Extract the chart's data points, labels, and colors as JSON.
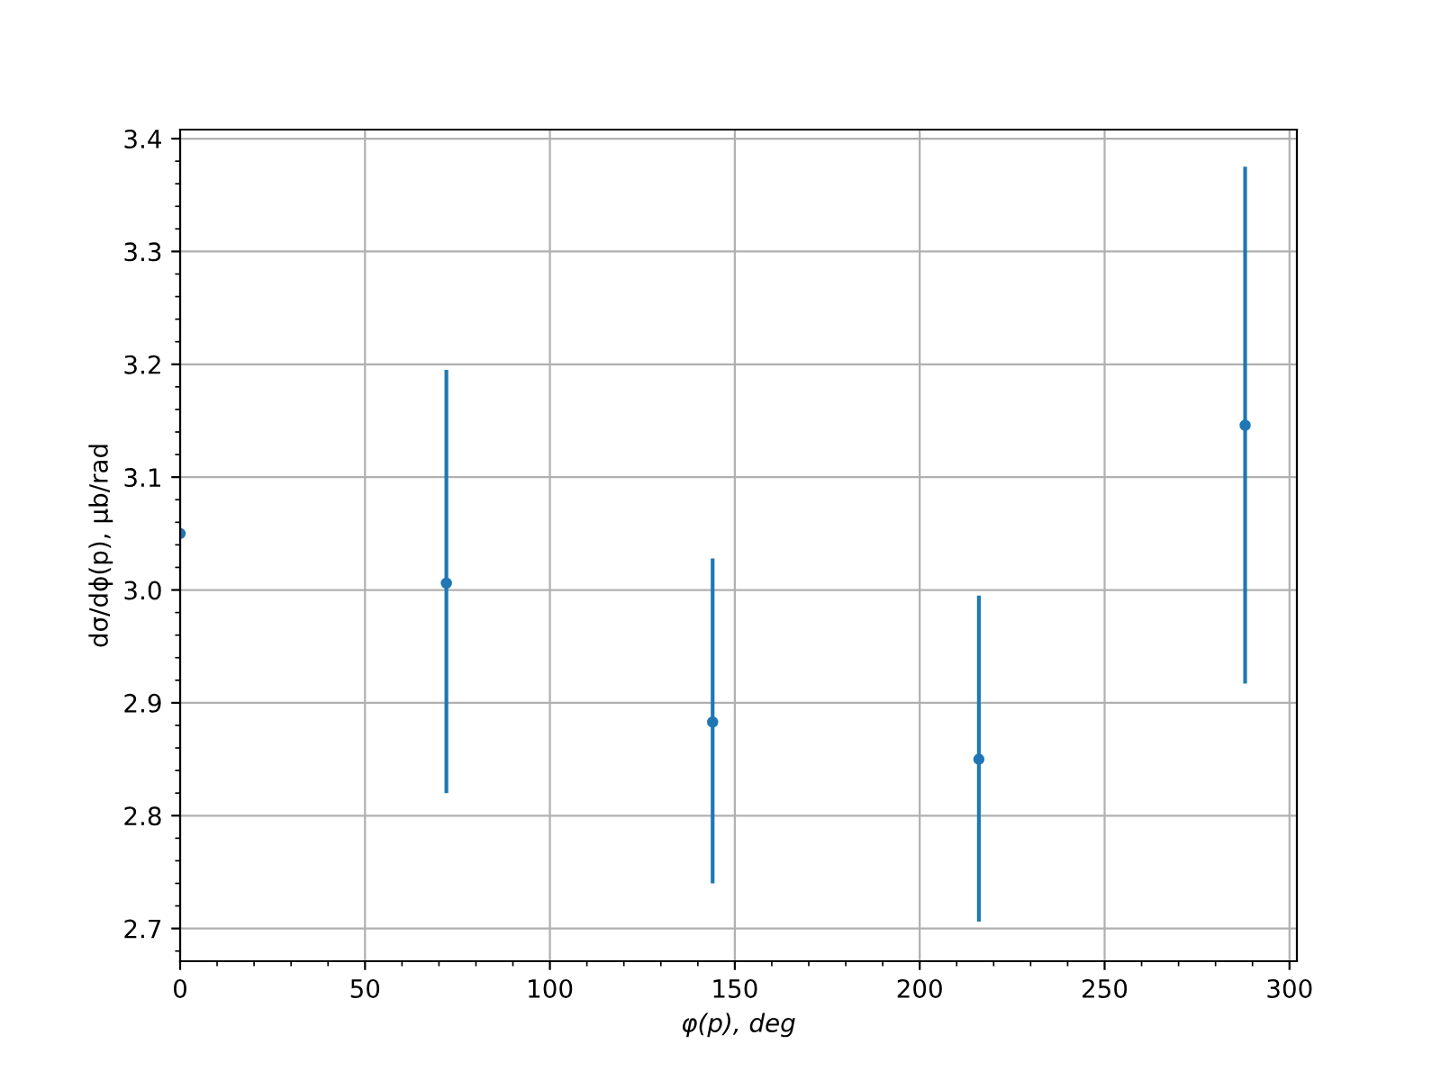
{
  "chart_data": {
    "type": "scatter",
    "xlabel": "φ(p), deg",
    "ylabel": "dσ/dϕ(p), μb/rad",
    "x": [
      0,
      72,
      144,
      216,
      288
    ],
    "series": [
      {
        "color": "#1f77b4",
        "values": [
          3.05,
          3.006,
          2.883,
          2.85,
          3.146
        ],
        "errors": [
          null,
          [
            2.82,
            3.195
          ],
          [
            2.74,
            3.028
          ],
          [
            2.706,
            2.995
          ],
          [
            2.917,
            3.375
          ]
        ]
      }
    ],
    "xlim": [
      0,
      302
    ],
    "xticks": [
      0,
      50,
      100,
      150,
      200,
      250,
      300
    ],
    "ylim": [
      2.671,
      3.408
    ],
    "yticks": [
      2.7,
      2.8,
      2.9,
      {
        "value": 3,
        "label": "3.0"
      },
      3.1,
      3.2,
      3.3,
      3.4
    ],
    "grid": true,
    "marker": "circle"
  }
}
